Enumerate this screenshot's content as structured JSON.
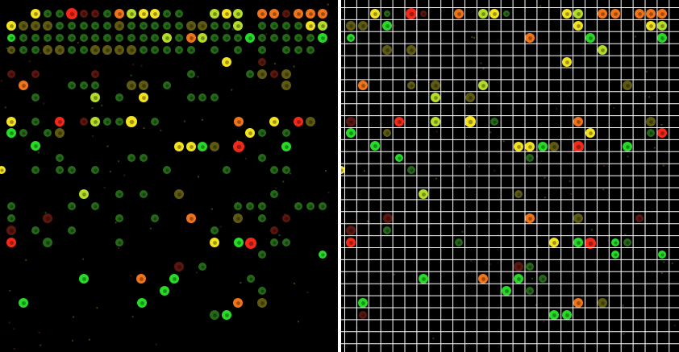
{
  "figure": {
    "left_panel": {
      "content": "microarray-spot-scan",
      "has_grid_overlay": false
    },
    "right_panel": {
      "content": "microarray-spot-scan",
      "has_grid_overlay": true,
      "grid_line_color": "#ffffff"
    },
    "divider_color": "#ffffff",
    "background_color": "#000000",
    "spot_colors": {
      "red": "#ff2a1a",
      "orange": "#ff7a1a",
      "yellow": "#ffee22",
      "yellow_green": "#bfe82a",
      "green": "#29e62a",
      "dark_green": "#2c7a1c",
      "dark_red": "#6a1a12",
      "olive": "#6f6a14"
    }
  }
}
